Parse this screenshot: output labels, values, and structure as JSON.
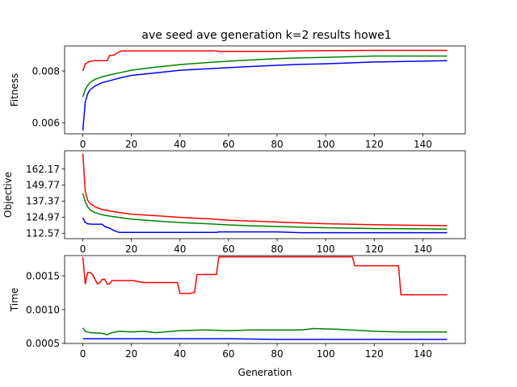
{
  "title": "ave seed ave generation k=2 results howe1",
  "chart_data": [
    {
      "type": "line",
      "title": "ave seed ave generation k=2 results howe1",
      "xlabel": "",
      "ylabel": "Fitness",
      "xlim": [
        -7.5,
        157.5
      ],
      "ylim": [
        0.00557,
        0.00897
      ],
      "xticks": [
        0,
        20,
        40,
        60,
        80,
        100,
        120,
        140
      ],
      "xtick_labels": [
        "0",
        "20",
        "40",
        "60",
        "80",
        "100",
        "120",
        "140"
      ],
      "yticks": [
        0.006,
        0.008
      ],
      "ytick_labels": [
        "0.006",
        "0.008"
      ],
      "grid": false,
      "series": [
        {
          "color": "#ff0000",
          "points": [
            [
              0,
              0.008
            ],
            [
              1,
              0.00828
            ],
            [
              2,
              0.00833
            ],
            [
              3,
              0.00838
            ],
            [
              5,
              0.0084
            ],
            [
              10,
              0.0084
            ],
            [
              11,
              0.0086
            ],
            [
              13,
              0.00862
            ],
            [
              14,
              0.0087
            ],
            [
              16,
              0.00878
            ],
            [
              55,
              0.00878
            ],
            [
              56,
              0.00876
            ],
            [
              80,
              0.00876
            ],
            [
              90,
              0.00878
            ],
            [
              118,
              0.0088
            ],
            [
              150,
              0.0088
            ]
          ]
        },
        {
          "color": "#008000",
          "points": [
            [
              0,
              0.007
            ],
            [
              1,
              0.00728
            ],
            [
              2,
              0.00745
            ],
            [
              3,
              0.00756
            ],
            [
              5,
              0.00768
            ],
            [
              8,
              0.00778
            ],
            [
              12,
              0.00787
            ],
            [
              16,
              0.00795
            ],
            [
              20,
              0.00803
            ],
            [
              30,
              0.00815
            ],
            [
              40,
              0.00825
            ],
            [
              50,
              0.00832
            ],
            [
              60,
              0.00838
            ],
            [
              70,
              0.00843
            ],
            [
              80,
              0.00848
            ],
            [
              90,
              0.00851
            ],
            [
              100,
              0.00853
            ],
            [
              120,
              0.00858
            ],
            [
              150,
              0.00858
            ]
          ]
        },
        {
          "color": "#0000ff",
          "points": [
            [
              0,
              0.0057
            ],
            [
              1,
              0.0068
            ],
            [
              2,
              0.00712
            ],
            [
              3,
              0.00728
            ],
            [
              5,
              0.00742
            ],
            [
              8,
              0.00755
            ],
            [
              12,
              0.00765
            ],
            [
              16,
              0.00775
            ],
            [
              20,
              0.00783
            ],
            [
              30,
              0.00793
            ],
            [
              40,
              0.00803
            ],
            [
              50,
              0.00808
            ],
            [
              60,
              0.00813
            ],
            [
              70,
              0.00818
            ],
            [
              80,
              0.00822
            ],
            [
              90,
              0.00826
            ],
            [
              100,
              0.00828
            ],
            [
              120,
              0.00835
            ],
            [
              150,
              0.0084
            ]
          ]
        }
      ]
    },
    {
      "type": "line",
      "xlabel": "",
      "ylabel": "Objective",
      "xlim": [
        -7.5,
        157.5
      ],
      "ylim": [
        108.4,
        176.2
      ],
      "xticks": [
        0,
        20,
        40,
        60,
        80,
        100,
        120,
        140
      ],
      "xtick_labels": [
        "0",
        "20",
        "40",
        "60",
        "80",
        "100",
        "120",
        "140"
      ],
      "yticks": [
        112.57,
        124.97,
        137.37,
        149.77,
        162.17
      ],
      "ytick_labels": [
        "112.57",
        "124.97",
        "137.37",
        "149.77",
        "162.17"
      ],
      "grid": false,
      "series": [
        {
          "color": "#ff0000",
          "points": [
            [
              0,
              174.0
            ],
            [
              1,
              145.0
            ],
            [
              2,
              138.0
            ],
            [
              3,
              135.5
            ],
            [
              5,
              133.0
            ],
            [
              8,
              130.8
            ],
            [
              12,
              129.5
            ],
            [
              16,
              128.3
            ],
            [
              20,
              127.3
            ],
            [
              30,
              126.1
            ],
            [
              40,
              124.8
            ],
            [
              50,
              123.9
            ],
            [
              60,
              122.6
            ],
            [
              70,
              121.9
            ],
            [
              80,
              121.2
            ],
            [
              90,
              120.5
            ],
            [
              100,
              119.9
            ],
            [
              120,
              119.1
            ],
            [
              150,
              118.4
            ]
          ]
        },
        {
          "color": "#008000",
          "points": [
            [
              0,
              143.5
            ],
            [
              1,
              137.0
            ],
            [
              2,
              133.0
            ],
            [
              3,
              130.5
            ],
            [
              5,
              128.5
            ],
            [
              8,
              126.8
            ],
            [
              12,
              125.5
            ],
            [
              16,
              124.5
            ],
            [
              20,
              123.5
            ],
            [
              30,
              122.0
            ],
            [
              40,
              120.8
            ],
            [
              50,
              120.0
            ],
            [
              60,
              119.0
            ],
            [
              70,
              118.3
            ],
            [
              80,
              117.8
            ],
            [
              90,
              117.3
            ],
            [
              100,
              116.8
            ],
            [
              120,
              116.2
            ],
            [
              150,
              115.8
            ]
          ]
        },
        {
          "color": "#0000ff",
          "points": [
            [
              0,
              124.5
            ],
            [
              1,
              121.0
            ],
            [
              2,
              119.8
            ],
            [
              4,
              119.5
            ],
            [
              8,
              119.5
            ],
            [
              9,
              117.8
            ],
            [
              11,
              116.5
            ],
            [
              13,
              114.5
            ],
            [
              15,
              113.2
            ],
            [
              55,
              113.2
            ],
            [
              56,
              113.6
            ],
            [
              80,
              113.6
            ],
            [
              90,
              113.0
            ],
            [
              150,
              113.0
            ]
          ]
        }
      ]
    },
    {
      "type": "line",
      "xlabel": "Generation",
      "ylabel": "Time",
      "xlim": [
        -7.5,
        157.5
      ],
      "ylim": [
        0.0005,
        0.0018
      ],
      "xticks": [
        0,
        20,
        40,
        60,
        80,
        100,
        120,
        140
      ],
      "xtick_labels": [
        "0",
        "20",
        "40",
        "60",
        "80",
        "100",
        "120",
        "140"
      ],
      "yticks": [
        0.0005,
        0.001,
        0.0015
      ],
      "ytick_labels": [
        "0.0005",
        "0.0010",
        "0.0015"
      ],
      "grid": false,
      "series": [
        {
          "color": "#ff0000",
          "points": [
            [
              0,
              0.00178
            ],
            [
              1,
              0.00138
            ],
            [
              2,
              0.00155
            ],
            [
              3,
              0.00155
            ],
            [
              4,
              0.00152
            ],
            [
              5,
              0.00145
            ],
            [
              6,
              0.00138
            ],
            [
              7,
              0.0014
            ],
            [
              8,
              0.00145
            ],
            [
              9,
              0.00145
            ],
            [
              10,
              0.00138
            ],
            [
              11,
              0.00138
            ],
            [
              12,
              0.00143
            ],
            [
              20,
              0.00143
            ],
            [
              21,
              0.00143
            ],
            [
              22,
              0.00142
            ],
            [
              25,
              0.0014
            ],
            [
              39,
              0.0014
            ],
            [
              40,
              0.00124
            ],
            [
              44,
              0.00124
            ],
            [
              45,
              0.00125
            ],
            [
              46,
              0.00125
            ],
            [
              47,
              0.00152
            ],
            [
              55,
              0.00152
            ],
            [
              56,
              0.00178
            ],
            [
              111,
              0.00178
            ],
            [
              112,
              0.00165
            ],
            [
              130,
              0.00165
            ],
            [
              131,
              0.00122
            ],
            [
              150,
              0.00122
            ]
          ]
        },
        {
          "color": "#008000",
          "points": [
            [
              0,
              0.00073
            ],
            [
              1,
              0.00068
            ],
            [
              3,
              0.00066
            ],
            [
              8,
              0.00065
            ],
            [
              10,
              0.00063
            ],
            [
              12,
              0.00066
            ],
            [
              15,
              0.00068
            ],
            [
              20,
              0.00067
            ],
            [
              25,
              0.00068
            ],
            [
              30,
              0.00066
            ],
            [
              40,
              0.00069
            ],
            [
              50,
              0.0007
            ],
            [
              60,
              0.00069
            ],
            [
              70,
              0.0007
            ],
            [
              80,
              0.0007
            ],
            [
              90,
              0.0007
            ],
            [
              95,
              0.00072
            ],
            [
              105,
              0.00071
            ],
            [
              110,
              0.0007
            ],
            [
              120,
              0.00068
            ],
            [
              130,
              0.00067
            ],
            [
              150,
              0.00067
            ]
          ]
        },
        {
          "color": "#0000ff",
          "points": [
            [
              0,
              0.00057
            ],
            [
              20,
              0.00057
            ],
            [
              40,
              0.00057
            ],
            [
              60,
              0.00057
            ],
            [
              80,
              0.00056
            ],
            [
              100,
              0.00056
            ],
            [
              120,
              0.00056
            ],
            [
              150,
              0.00056
            ]
          ]
        }
      ]
    }
  ]
}
